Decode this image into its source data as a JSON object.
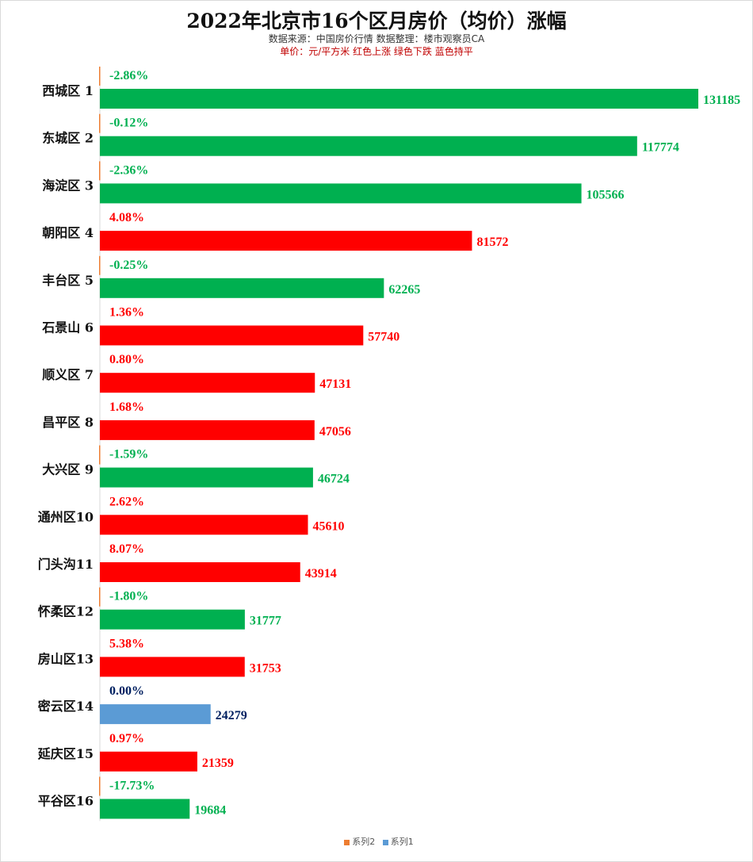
{
  "chart_data": {
    "type": "bar",
    "orientation": "horizontal",
    "title": "2022年北京市16个区月房价（均价）涨幅",
    "subtitle": "数据来源：中国房价行情   数据整理：楼市观察员CA",
    "unit_note": "单价：元/平方米    红色上涨   绿色下跌   蓝色持平",
    "categories": [
      "西城区 1",
      "东城区 2",
      "海淀区 3",
      "朝阳区 4",
      "丰台区 5",
      "石景山 6",
      "顺义区 7",
      "昌平区 8",
      "大兴区 9",
      "通州区10",
      "门头沟11",
      "怀柔区12",
      "房山区13",
      "密云区14",
      "延庆区15",
      "平谷区16"
    ],
    "values": [
      131185,
      117774,
      105566,
      81572,
      62265,
      57740,
      47131,
      47056,
      46724,
      45610,
      43914,
      31777,
      31753,
      24279,
      21359,
      19684
    ],
    "changes": [
      "-2.86%",
      "-0.12%",
      "-2.36%",
      "4.08%",
      "-0.25%",
      "1.36%",
      "0.80%",
      "1.68%",
      "-1.59%",
      "2.62%",
      "8.07%",
      "-1.80%",
      "5.38%",
      "0.00%",
      "0.97%",
      "-17.73%"
    ],
    "xlim": [
      0,
      131185
    ],
    "grid": false,
    "legend_position": "bottom",
    "legend": [
      {
        "name": "系列2",
        "color": "#ed7d31"
      },
      {
        "name": "系列1",
        "color": "#5b9bd5"
      }
    ],
    "colors": {
      "up_bar": "#ff0000",
      "down_bar": "#00b050",
      "flat_bar": "#5b9bd5",
      "up_text": "#ff0000",
      "down_text": "#00b050",
      "flat_text": "#002060",
      "small_bar": "#ed7d31"
    }
  }
}
